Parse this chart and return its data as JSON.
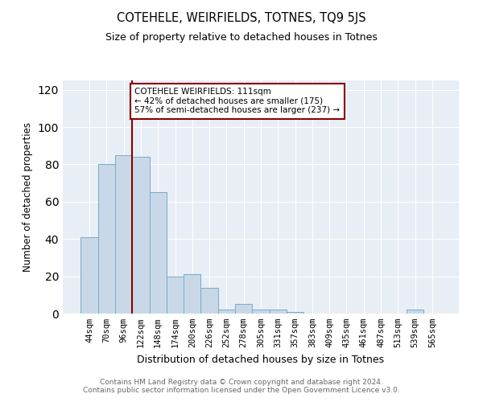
{
  "title": "COTEHELE, WEIRFIELDS, TOTNES, TQ9 5JS",
  "subtitle": "Size of property relative to detached houses in Totnes",
  "xlabel": "Distribution of detached houses by size in Totnes",
  "ylabel": "Number of detached properties",
  "bar_color": "#c8d8e8",
  "bar_edge_color": "#7aaac8",
  "categories": [
    "44sqm",
    "70sqm",
    "96sqm",
    "122sqm",
    "148sqm",
    "174sqm",
    "200sqm",
    "226sqm",
    "252sqm",
    "278sqm",
    "305sqm",
    "331sqm",
    "357sqm",
    "383sqm",
    "409sqm",
    "435sqm",
    "461sqm",
    "487sqm",
    "513sqm",
    "539sqm",
    "565sqm"
  ],
  "values": [
    41,
    80,
    85,
    84,
    65,
    20,
    21,
    14,
    2,
    5,
    2,
    2,
    1,
    0,
    0,
    0,
    0,
    0,
    0,
    2,
    0
  ],
  "ylim": [
    0,
    125
  ],
  "yticks": [
    0,
    20,
    40,
    60,
    80,
    100,
    120
  ],
  "property_size": 111,
  "property_name": "COTEHELE WEIRFIELDS",
  "pct_smaller": 42,
  "n_smaller": 175,
  "pct_larger_semi": 57,
  "n_larger_semi": 237,
  "vline_x_index": 2.5,
  "footer_text": "Contains HM Land Registry data © Crown copyright and database right 2024.\nContains public sector information licensed under the Open Government Licence v3.0.",
  "background_color": "#e8eef5",
  "grid_color": "#ffffff"
}
